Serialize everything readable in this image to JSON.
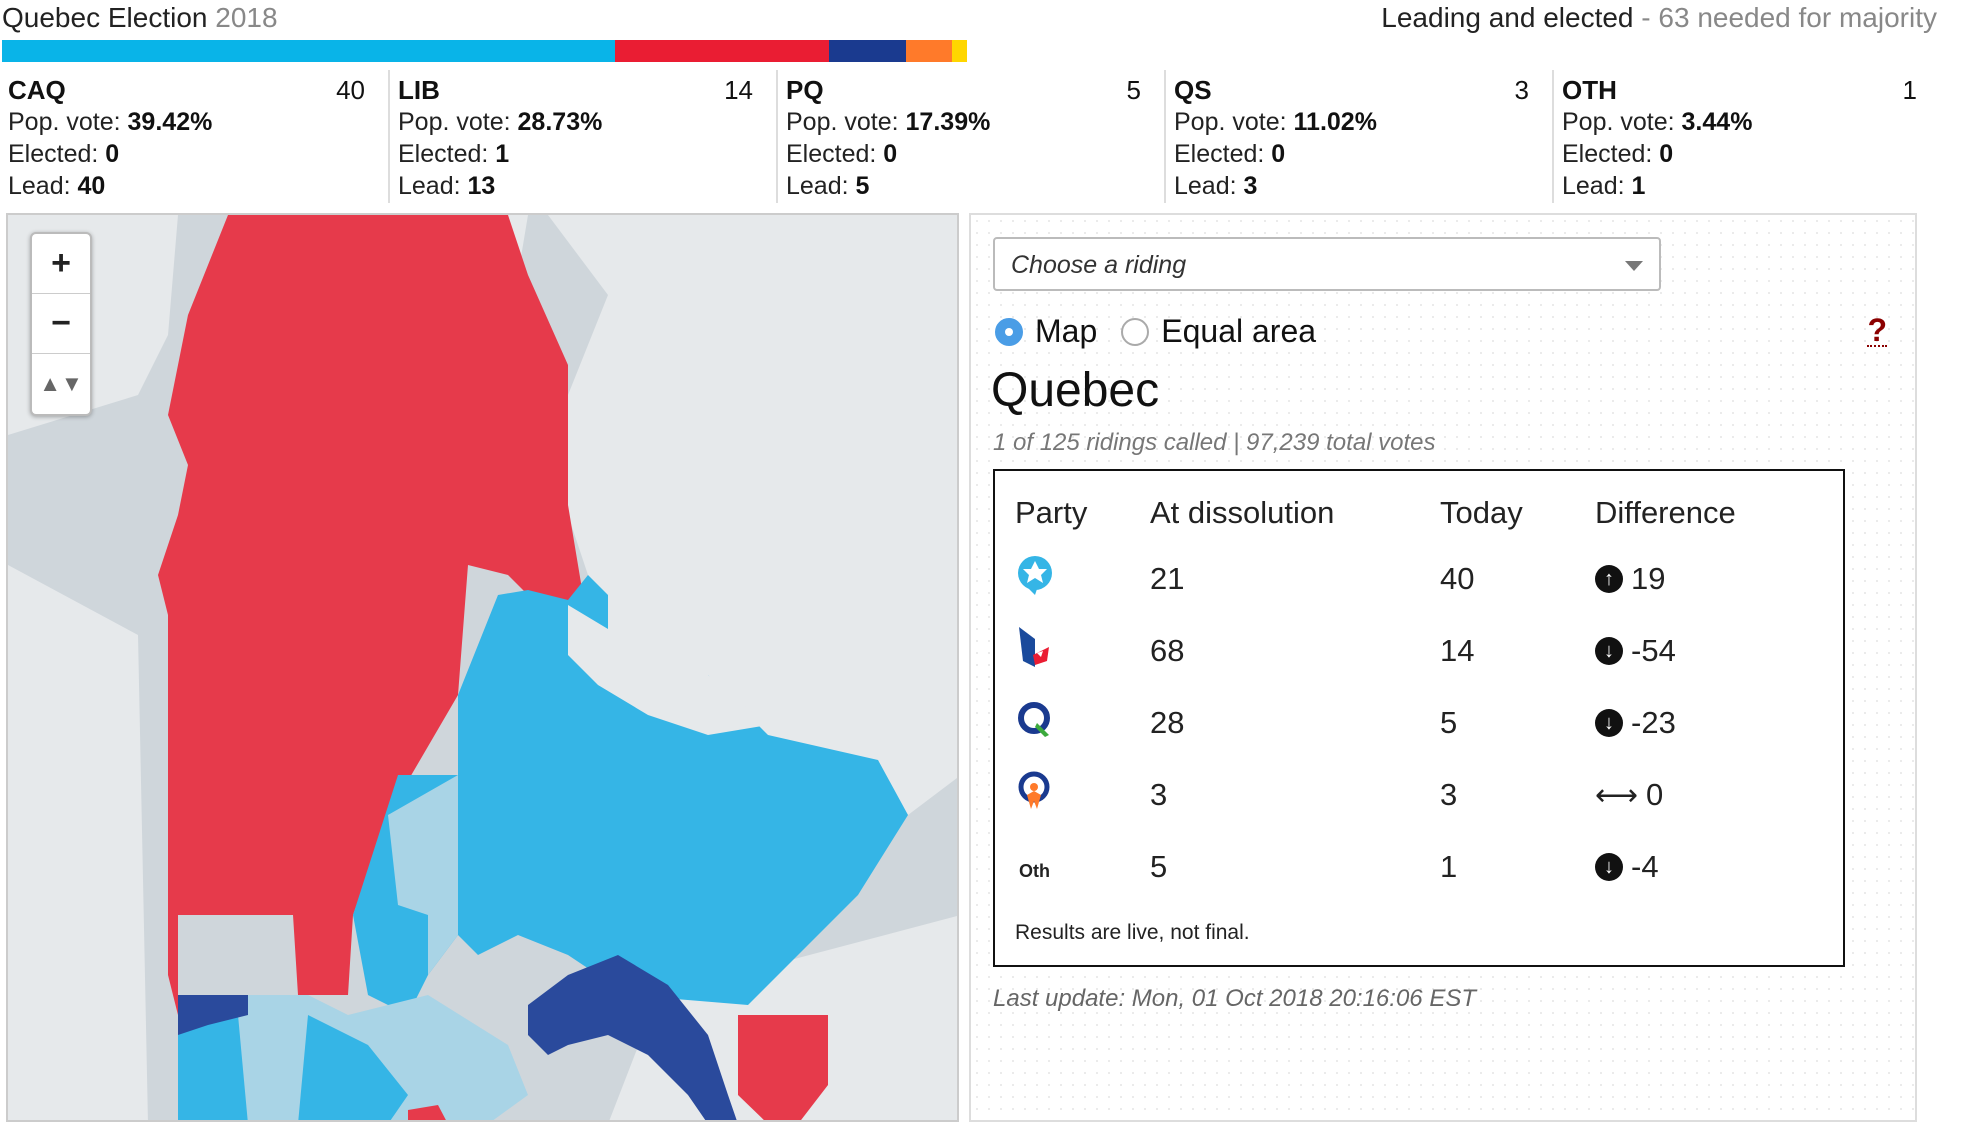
{
  "header": {
    "title": "Quebec Election",
    "year": "2018",
    "majority_label": "Leading and elected",
    "majority_sep": " - ",
    "majority_note": "63 needed for majority"
  },
  "seat_bar": [
    {
      "party": "CAQ",
      "seats": 40,
      "color": "#09b4e8"
    },
    {
      "party": "LIB",
      "seats": 14,
      "color": "#ea1d33"
    },
    {
      "party": "PQ",
      "seats": 5,
      "color": "#1a3a8f"
    },
    {
      "party": "QS",
      "seats": 3,
      "color": "#ff7a2a"
    },
    {
      "party": "OTH",
      "seats": 1,
      "color": "#ffd600"
    }
  ],
  "parties": [
    {
      "code": "CAQ",
      "seats": "40",
      "pop_label": "Pop. vote:",
      "pop": "39.42%",
      "elected_label": "Elected:",
      "elected": "0",
      "lead_label": "Lead:",
      "lead": "40"
    },
    {
      "code": "LIB",
      "seats": "14",
      "pop_label": "Pop. vote:",
      "pop": "28.73%",
      "elected_label": "Elected:",
      "elected": "1",
      "lead_label": "Lead:",
      "lead": "13"
    },
    {
      "code": "PQ",
      "seats": "5",
      "pop_label": "Pop. vote:",
      "pop": "17.39%",
      "elected_label": "Elected:",
      "elected": "0",
      "lead_label": "Lead:",
      "lead": "5"
    },
    {
      "code": "QS",
      "seats": "3",
      "pop_label": "Pop. vote:",
      "pop": "11.02%",
      "elected_label": "Elected:",
      "elected": "0",
      "lead_label": "Lead:",
      "lead": "3"
    },
    {
      "code": "OTH",
      "seats": "1",
      "pop_label": "Pop. vote:",
      "pop": "3.44%",
      "elected_label": "Elected:",
      "elected": "0",
      "lead_label": "Lead:",
      "lead": "1"
    }
  ],
  "map": {
    "zoom_in": "+",
    "zoom_out": "−",
    "reset": "▲▼",
    "colors": {
      "water": "#cfd6db",
      "land": "#e6e9eb",
      "lib": "#e63a4b",
      "caq": "#35b5e6",
      "caq_light": "#a9d4e6",
      "pq": "#2a4a9c"
    }
  },
  "panel": {
    "select_placeholder": "Choose a riding",
    "view_map": "Map",
    "view_equal": "Equal area",
    "help": "?",
    "region": "Quebec",
    "called": "1 of 125 ridings called | 97,239 total votes",
    "table": {
      "headers": [
        "Party",
        "At dissolution",
        "Today",
        "Difference"
      ],
      "rows": [
        {
          "party": "CAQ",
          "icon": "caq-logo-icon",
          "dissolution": "21",
          "today": "40",
          "direction": "up",
          "diff": "19"
        },
        {
          "party": "LIB",
          "icon": "lib-logo-icon",
          "dissolution": "68",
          "today": "14",
          "direction": "down",
          "diff": "-54"
        },
        {
          "party": "PQ",
          "icon": "pq-logo-icon",
          "dissolution": "28",
          "today": "5",
          "direction": "down",
          "diff": "-23"
        },
        {
          "party": "QS",
          "icon": "qs-logo-icon",
          "dissolution": "3",
          "today": "3",
          "direction": "flat",
          "diff": "0"
        },
        {
          "party": "Oth",
          "icon": "",
          "dissolution": "5",
          "today": "1",
          "direction": "down",
          "diff": "-4"
        }
      ],
      "note": "Results are live, not final."
    },
    "last_update": "Last update: Mon, 01 Oct 2018 20:16:06 EST"
  }
}
